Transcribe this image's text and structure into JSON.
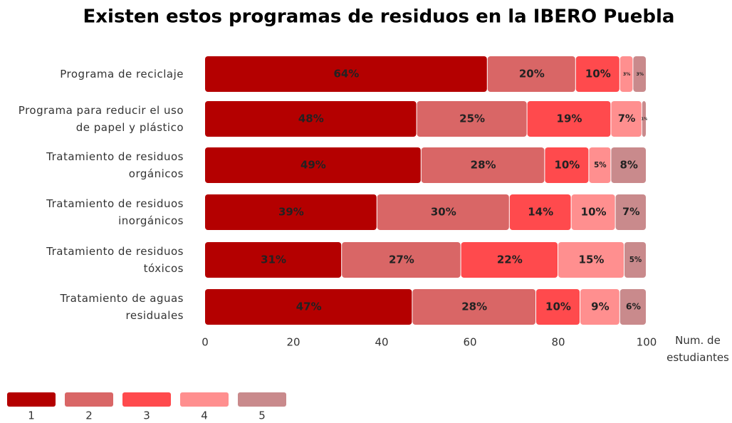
{
  "chart_data": {
    "type": "stacked_barh",
    "title": "Existen estos programas de residuos en la IBERO Puebla",
    "x_label": "Num. de estudiantes",
    "categories": [
      "Programa de reciclaje",
      "Programa para reducir el uso de papel y plástico",
      "Tratamiento de residuos orgánicos",
      "Tratamiento de residuos inorgánicos",
      "Tratamiento de residuos tóxicos",
      "Tratamiento de aguas residuales"
    ],
    "xlim": [
      0,
      100
    ],
    "xticks": [
      0,
      20,
      40,
      60,
      80,
      100
    ],
    "series": [
      {
        "name": "1",
        "color": "#b40000",
        "values": [
          64,
          48,
          49,
          39,
          31,
          47
        ],
        "value_labels": [
          "64%",
          "48%",
          "49%",
          "39%",
          "31%",
          "47%"
        ]
      },
      {
        "name": "2",
        "color": "#d96666",
        "values": [
          20,
          25,
          28,
          30,
          27,
          28
        ],
        "value_labels": [
          "20%",
          "25%",
          "28%",
          "30%",
          "27%",
          "28%"
        ]
      },
      {
        "name": "3",
        "color": "#ff4a4d",
        "values": [
          10,
          19,
          10,
          14,
          22,
          10
        ],
        "value_labels": [
          "10%",
          "19%",
          "10%",
          "14%",
          "22%",
          "10%"
        ]
      },
      {
        "name": "4",
        "color": "#ff8f8f",
        "values": [
          3,
          7,
          5,
          10,
          15,
          9
        ],
        "value_labels": [
          "3%",
          "7%",
          "5%",
          "10%",
          "15%",
          "9%"
        ]
      },
      {
        "name": "5",
        "color": "#c98a8c",
        "values": [
          3,
          1,
          8,
          7,
          5,
          6
        ],
        "value_labels": [
          "3%",
          "1%",
          "8%",
          "7%",
          "5%",
          "6%"
        ]
      }
    ]
  }
}
